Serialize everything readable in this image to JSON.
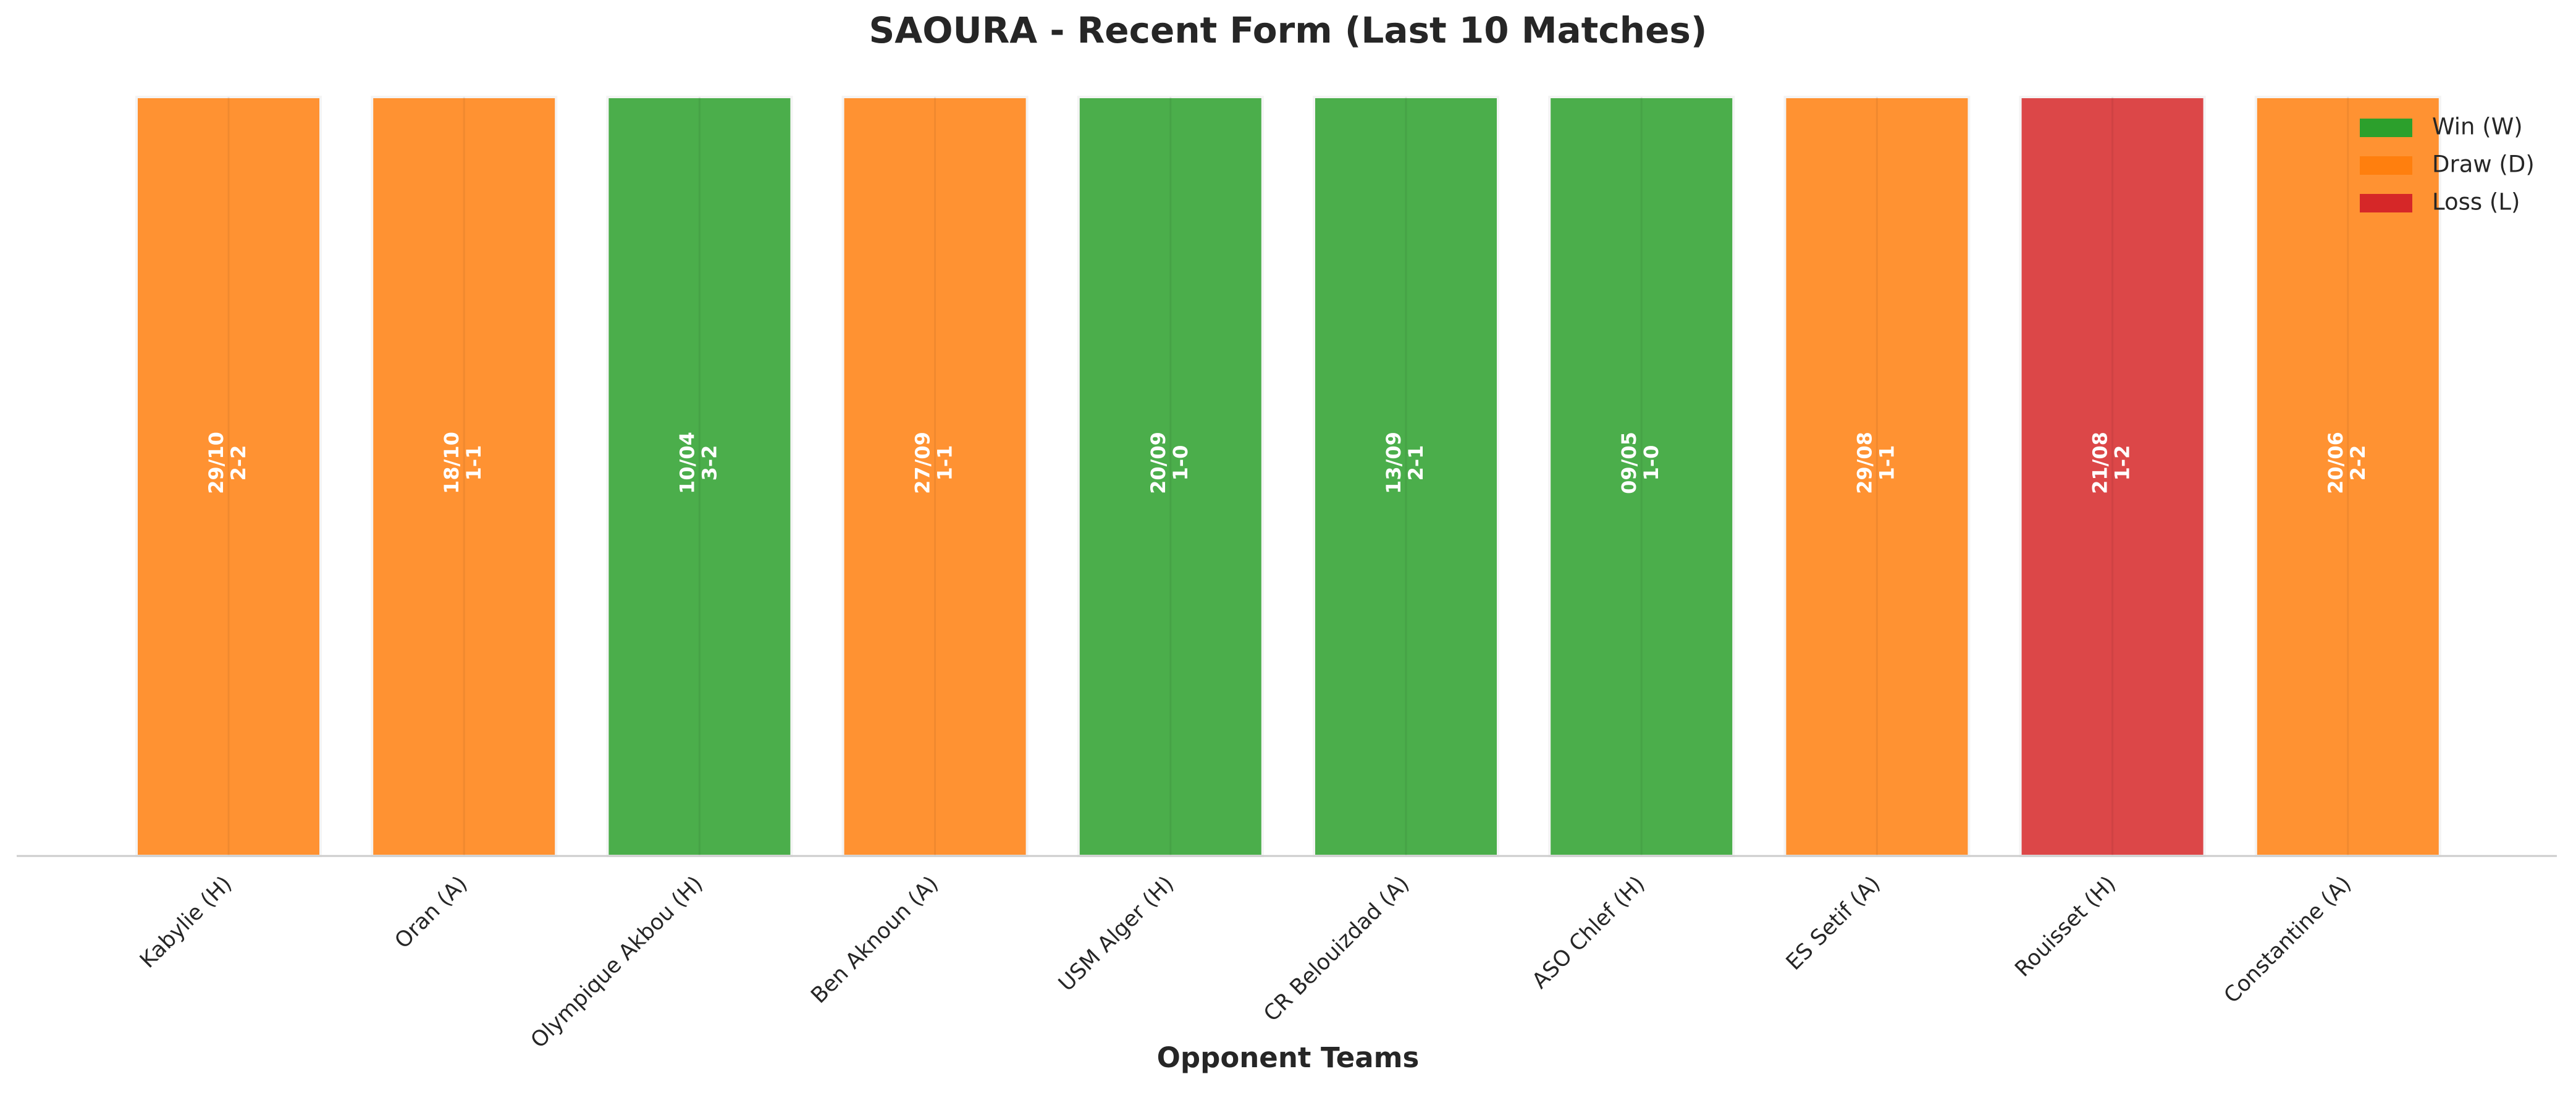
{
  "chart_data": {
    "type": "bar",
    "title": "SAOURA - Recent Form (Last 10 Matches)",
    "xlabel": "Opponent Teams",
    "categories": [
      "Kabylie (H)",
      "Oran (A)",
      "Olympique Akbou (H)",
      "Ben Aknoun (A)",
      "USM Alger (H)",
      "CR Belouizdad (A)",
      "ASO Chlef (H)",
      "ES Setif (A)",
      "Rouisset (H)",
      "Constantine (A)"
    ],
    "values": [
      1,
      1,
      1,
      1,
      1,
      1,
      1,
      1,
      1,
      1
    ],
    "dates": [
      "29/10",
      "18/10",
      "10/04",
      "27/09",
      "20/09",
      "13/09",
      "09/05",
      "29/08",
      "21/08",
      "20/06"
    ],
    "scores": [
      "2-2",
      "1-1",
      "3-2",
      "1-1",
      "1-0",
      "2-1",
      "1-0",
      "1-1",
      "1-2",
      "2-2"
    ],
    "colors": [
      "#ff7f0e",
      "#ff7f0e",
      "#2ca02c",
      "#ff7f0e",
      "#2ca02c",
      "#2ca02c",
      "#2ca02c",
      "#ff7f0e",
      "#d62728",
      "#ff7f0e"
    ],
    "alpha": 0.85,
    "ylim": [
      0,
      1
    ],
    "legend": {
      "position": "upper right",
      "entries": [
        {
          "name": "Win (W)",
          "color": "#2ca02c"
        },
        {
          "name": "Draw (D)",
          "color": "#ff7f0e"
        },
        {
          "name": "Loss (L)",
          "color": "#d62728"
        }
      ]
    }
  }
}
